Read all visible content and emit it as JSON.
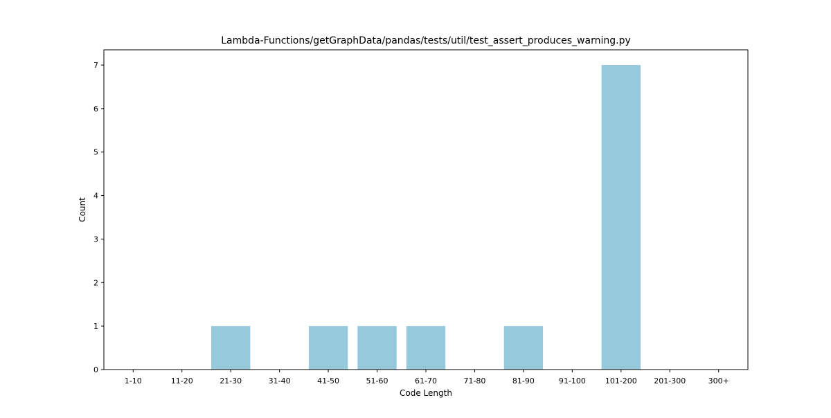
{
  "chart_data": {
    "type": "bar",
    "title": "Lambda-Functions/getGraphData/pandas/tests/util/test_assert_produces_warning.py",
    "xlabel": "Code Length",
    "ylabel": "Count",
    "categories": [
      "1-10",
      "11-20",
      "21-30",
      "31-40",
      "41-50",
      "51-60",
      "61-70",
      "71-80",
      "81-90",
      "91-100",
      "101-200",
      "201-300",
      "300+"
    ],
    "values": [
      0,
      0,
      1,
      0,
      1,
      1,
      1,
      0,
      1,
      0,
      7,
      0,
      0
    ],
    "ylim": [
      0,
      7.35
    ],
    "yticks": [
      0,
      1,
      2,
      3,
      4,
      5,
      6,
      7
    ],
    "grid": false,
    "legend": "none",
    "bar_color": "#96c9dc"
  }
}
